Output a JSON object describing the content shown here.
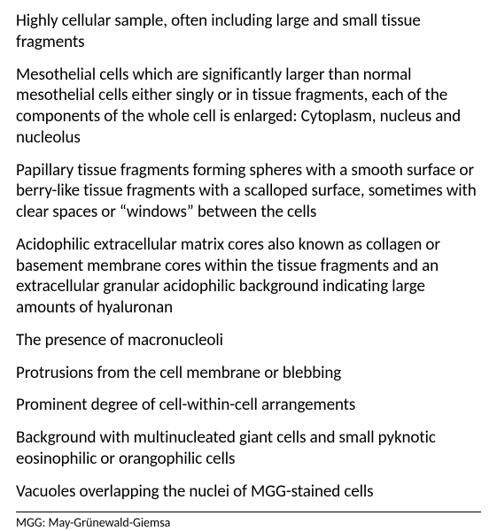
{
  "items": [
    "Highly cellular sample, often including large and small tissue fragments",
    "Mesothelial cells which are significantly larger than normal mesothelial cells either singly or in tissue fragments, each of the components of the whole cell is enlarged: Cytoplasm, nucleus and nucleolus",
    "Papillary tissue fragments forming spheres with a smooth surface or berry-like tissue fragments with a scalloped surface, sometimes with clear spaces or “windows” between the cells",
    "Acidophilic extracellular matrix cores also known as collagen or basement membrane cores within the tissue fragments and an extracellular granular acidophilic background indicating large amounts of hyaluronan",
    "The presence of macronucleoli",
    "Protrusions from the cell membrane or blebbing",
    "Prominent degree of cell-within-cell arrangements",
    "Background with multinucleated giant cells and small pyknotic eosinophilic or orangophilic cells",
    "Vacuoles overlapping the nuclei of MGG-stained cells"
  ],
  "footnote": "MGG: May-Grünewald-Giemsa"
}
